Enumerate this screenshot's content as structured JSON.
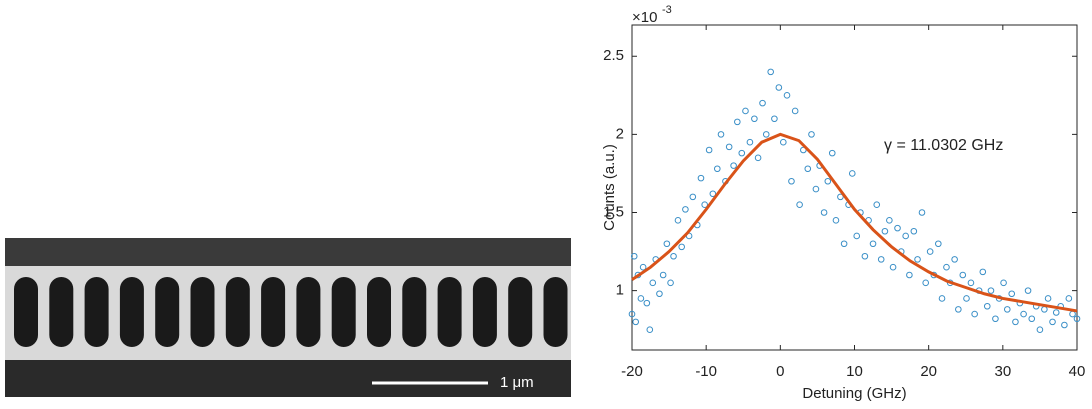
{
  "image": {
    "scale_bar": "1 μm"
  },
  "chart_data": {
    "type": "scatter",
    "xlabel": "Detuning (GHz)",
    "ylabel": "Counts (a.u.)",
    "y_multiplier_base": "×10",
    "y_multiplier_exponent": -3,
    "annotation": "γ = 11.0302 GHz",
    "xlim": [
      -20,
      40
    ],
    "xticks": [
      -20,
      -10,
      0,
      10,
      20,
      30,
      40
    ],
    "ylim": [
      0.62,
      2.7
    ],
    "yticks": [
      1,
      1.5,
      2,
      2.5
    ],
    "points": {
      "color": "#3a8fc7",
      "x": [
        -20,
        -19.7,
        -19.5,
        -19.2,
        -18.8,
        -18.5,
        -18,
        -17.6,
        -17.2,
        -16.8,
        -16.3,
        -15.8,
        -15.3,
        -14.8,
        -14.4,
        -13.8,
        -13.3,
        -12.8,
        -12.3,
        -11.8,
        -11.2,
        -10.7,
        -10.2,
        -9.6,
        -9.1,
        -8.5,
        -8,
        -7.4,
        -6.9,
        -6.3,
        -5.8,
        -5.2,
        -4.7,
        -4.1,
        -3.5,
        -3,
        -2.4,
        -1.9,
        -1.3,
        -0.8,
        -0.2,
        0.4,
        0.9,
        1.5,
        2,
        2.6,
        3.1,
        3.7,
        4.2,
        4.8,
        5.3,
        5.9,
        6.4,
        7,
        7.5,
        8.1,
        8.6,
        9.2,
        9.7,
        10.3,
        10.8,
        11.4,
        11.9,
        12.5,
        13,
        13.6,
        14.1,
        14.7,
        15.2,
        15.8,
        16.3,
        16.9,
        17.4,
        18,
        18.5,
        19.1,
        19.6,
        20.2,
        20.7,
        21.3,
        21.8,
        22.4,
        22.9,
        23.5,
        24,
        24.6,
        25.1,
        25.7,
        26.2,
        26.8,
        27.3,
        27.9,
        28.4,
        29,
        29.5,
        30.1,
        30.6,
        31.2,
        31.7,
        32.3,
        32.8,
        33.4,
        33.9,
        34.5,
        35,
        35.6,
        36.1,
        36.7,
        37.2,
        37.8,
        38.3,
        38.9,
        39.4,
        40
      ],
      "values": [
        0.85,
        1.22,
        0.8,
        1.1,
        0.95,
        1.15,
        0.92,
        0.75,
        1.05,
        1.2,
        0.98,
        1.1,
        1.3,
        1.05,
        1.22,
        1.45,
        1.28,
        1.52,
        1.35,
        1.6,
        1.42,
        1.72,
        1.55,
        1.9,
        1.62,
        1.78,
        2.0,
        1.7,
        1.92,
        1.8,
        2.08,
        1.88,
        2.15,
        1.95,
        2.1,
        1.85,
        2.2,
        2.0,
        2.4,
        2.1,
        2.3,
        1.95,
        2.25,
        1.7,
        2.15,
        1.55,
        1.9,
        1.78,
        2.0,
        1.65,
        1.8,
        1.5,
        1.7,
        1.88,
        1.45,
        1.6,
        1.3,
        1.55,
        1.75,
        1.35,
        1.5,
        1.22,
        1.45,
        1.3,
        1.55,
        1.2,
        1.38,
        1.45,
        1.15,
        1.4,
        1.25,
        1.35,
        1.1,
        1.38,
        1.2,
        1.5,
        1.05,
        1.25,
        1.1,
        1.3,
        0.95,
        1.15,
        1.05,
        1.2,
        0.88,
        1.1,
        0.95,
        1.05,
        0.85,
        1.0,
        1.12,
        0.9,
        1.0,
        0.82,
        0.95,
        1.05,
        0.88,
        0.98,
        0.8,
        0.92,
        0.85,
        1.0,
        0.82,
        0.9,
        0.75,
        0.88,
        0.95,
        0.8,
        0.86,
        0.9,
        0.78,
        0.95,
        0.85,
        0.82
      ]
    },
    "fit": {
      "color": "#d95319",
      "x": [
        -20,
        -17.5,
        -15,
        -12.5,
        -10,
        -7.5,
        -5,
        -2.5,
        0,
        2.5,
        5,
        7.5,
        10,
        12.5,
        15,
        17.5,
        20,
        22.5,
        25,
        27.5,
        30,
        32.5,
        35,
        37.5,
        40
      ],
      "values": [
        1.07,
        1.15,
        1.25,
        1.37,
        1.52,
        1.68,
        1.83,
        1.95,
        2.0,
        1.96,
        1.84,
        1.68,
        1.52,
        1.39,
        1.28,
        1.19,
        1.12,
        1.06,
        1.02,
        0.98,
        0.95,
        0.93,
        0.91,
        0.89,
        0.87
      ]
    }
  }
}
